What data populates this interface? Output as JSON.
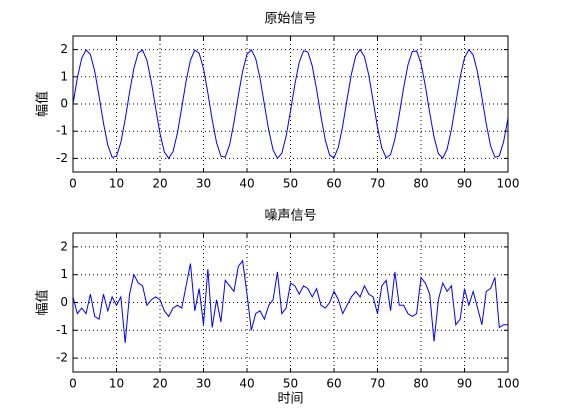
{
  "chart_data": [
    {
      "type": "line",
      "title": "原始信号",
      "ylabel": "幅值",
      "x": [
        0,
        1,
        2,
        3,
        4,
        5,
        6,
        7,
        8,
        9,
        10,
        11,
        12,
        13,
        14,
        15,
        16,
        17,
        18,
        19,
        20,
        21,
        22,
        23,
        24,
        25,
        26,
        27,
        28,
        29,
        30,
        31,
        32,
        33,
        34,
        35,
        36,
        37,
        38,
        39,
        40,
        41,
        42,
        43,
        44,
        45,
        46,
        47,
        48,
        49,
        50,
        51,
        52,
        53,
        54,
        55,
        56,
        57,
        58,
        59,
        60,
        61,
        62,
        63,
        64,
        65,
        66,
        67,
        68,
        69,
        70,
        71,
        72,
        73,
        74,
        75,
        76,
        77,
        78,
        79,
        80,
        81,
        82,
        83,
        84,
        85,
        86,
        87,
        88,
        89,
        90,
        91,
        92,
        93,
        94,
        95,
        96,
        97,
        98,
        99,
        100
      ],
      "series": [
        {
          "color": "#0000ff",
          "values": [
            0,
            0.96,
            1.68,
            1.99,
            1.82,
            1.2,
            0.28,
            -0.7,
            -1.51,
            -1.96,
            -1.92,
            -1.41,
            -0.56,
            0.43,
            1.31,
            1.88,
            1.98,
            1.6,
            0.82,
            -0.15,
            -1.09,
            -1.76,
            -2,
            -1.75,
            -1.07,
            -0.13,
            0.84,
            1.61,
            1.98,
            1.87,
            1.3,
            0.41,
            -0.58,
            -1.42,
            -1.92,
            -1.95,
            -1.5,
            -0.68,
            0.3,
            1.21,
            1.83,
            1.99,
            1.67,
            0.94,
            -0.02,
            -0.97,
            -1.69,
            -2,
            -1.81,
            -1.18,
            -0.26,
            0.72,
            1.53,
            1.96,
            1.91,
            1.4,
            0.54,
            -0.45,
            -1.33,
            -1.88,
            -1.98,
            -1.59,
            -0.81,
            0.17,
            1.1,
            1.77,
            2,
            1.74,
            1.06,
            0.11,
            -0.86,
            -1.62,
            -1.98,
            -1.86,
            -1.29,
            -0.39,
            0.59,
            1.44,
            1.93,
            1.95,
            1.49,
            0.67,
            -0.32,
            -1.22,
            -1.83,
            -1.99,
            -1.66,
            -0.93,
            0.04,
            0.99,
            1.7,
            2,
            1.8,
            1.17,
            0.25,
            -0.73,
            -1.54,
            -1.96,
            -1.91,
            -1.38,
            -0.52
          ]
        }
      ],
      "xlim": [
        0,
        100
      ],
      "xticks": [
        0,
        10,
        20,
        30,
        40,
        50,
        60,
        70,
        80,
        90,
        100
      ],
      "ylim": [
        -2.5,
        2.5
      ],
      "yticks": [
        -2,
        -1,
        0,
        1,
        2
      ],
      "grid": true
    },
    {
      "type": "line",
      "title": "噪声信号",
      "ylabel": "幅值",
      "xlabel": "时间",
      "x": [
        0,
        1,
        2,
        3,
        4,
        5,
        6,
        7,
        8,
        9,
        10,
        11,
        12,
        13,
        14,
        15,
        16,
        17,
        18,
        19,
        20,
        21,
        22,
        23,
        24,
        25,
        26,
        27,
        28,
        29,
        30,
        31,
        32,
        33,
        34,
        35,
        36,
        37,
        38,
        39,
        40,
        41,
        42,
        43,
        44,
        45,
        46,
        47,
        48,
        49,
        50,
        51,
        52,
        53,
        54,
        55,
        56,
        57,
        58,
        59,
        60,
        61,
        62,
        63,
        64,
        65,
        66,
        67,
        68,
        69,
        70,
        71,
        72,
        73,
        74,
        75,
        76,
        77,
        78,
        79,
        80,
        81,
        82,
        83,
        84,
        85,
        86,
        87,
        88,
        89,
        90,
        91,
        92,
        93,
        94,
        95,
        96,
        97,
        98,
        99,
        100
      ],
      "series": [
        {
          "color": "#0000ff",
          "values": [
            0.2,
            -0.4,
            -0.2,
            -0.4,
            0.3,
            -0.5,
            -0.6,
            0.3,
            -0.3,
            0.2,
            -0.1,
            0.2,
            -1.45,
            0.3,
            1,
            0.7,
            0.6,
            -0.1,
            0.1,
            0.2,
            0.1,
            -0.3,
            -0.5,
            -0.2,
            -0.1,
            -0.2,
            0.6,
            1.4,
            -0.3,
            0.5,
            -0.8,
            1.2,
            -0.9,
            0.1,
            -0.7,
            0.8,
            0.6,
            0.4,
            1.3,
            1.5,
            0.3,
            -1,
            -0.4,
            -0.3,
            -0.6,
            -0.1,
            0.1,
            1.1,
            -0.4,
            -0.2,
            0.7,
            0.6,
            0.3,
            0.6,
            0.5,
            0.2,
            0.5,
            -0.1,
            -0.2,
            0,
            0.4,
            0.1,
            -0.4,
            -0.1,
            0.2,
            0.4,
            0.2,
            0.6,
            0.3,
            0.2,
            -0.4,
            0.6,
            0.8,
            -0.3,
            1.1,
            -0.1,
            -0.1,
            -0.4,
            -0.5,
            -0.4,
            0.9,
            0.7,
            0.3,
            -1.4,
            0.1,
            0.7,
            0.4,
            0.6,
            -0.8,
            -0.6,
            0.5,
            -0.1,
            0.4,
            -0.2,
            -0.8,
            0.4,
            0.5,
            0.9,
            -0.9,
            -0.8,
            -0.8
          ]
        }
      ],
      "xlim": [
        0,
        100
      ],
      "xticks": [
        0,
        10,
        20,
        30,
        40,
        50,
        60,
        70,
        80,
        90,
        100
      ],
      "ylim": [
        -2.5,
        2.5
      ],
      "yticks": [
        -2,
        -1,
        0,
        1,
        2
      ],
      "grid": true
    }
  ]
}
